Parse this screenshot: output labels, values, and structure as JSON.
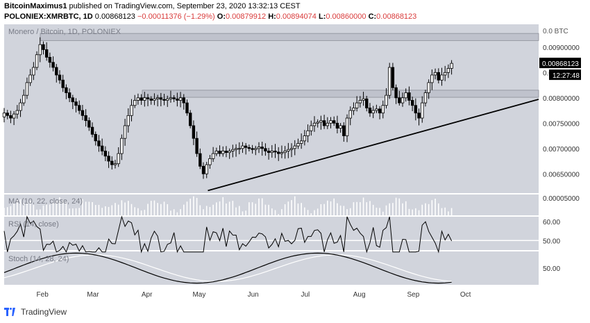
{
  "header": {
    "user": "BitcoinMaximus1",
    "published": "published on TradingView.com, September 23, 2020 13:32:13 CEST",
    "symbol": "POLONIEX:XMRBTC, 1D",
    "price": "0.00868123",
    "change": "−0.00011376 (−1.29%)",
    "o_label": "O:",
    "o": "0.00879912",
    "h_label": "H:",
    "h": "0.00894074",
    "l_label": "L:",
    "l": "0.00860000",
    "c_label": "C:",
    "c": "0.00868123"
  },
  "footer": {
    "brand": "TradingView"
  },
  "chart_data": {
    "type": "candlestick",
    "title": "Monero / Bitcoin, 1D, POLONIEX",
    "unit": "BTC",
    "top_axis_label": "0.0 BTC",
    "y_ticks": [
      "0.00900000",
      "0.00850000",
      "0.00800000",
      "0.00750000",
      "0.00700000",
      "0.00650000"
    ],
    "x_ticks": [
      "Feb",
      "Mar",
      "Apr",
      "May",
      "Jun",
      "Jul",
      "Aug",
      "Sep",
      "Oct"
    ],
    "last_price_label": "0.00868123",
    "countdown_label": "12:27:48",
    "resistance_zones": [
      {
        "from": 0.00913,
        "to": 0.00927
      },
      {
        "from": 0.00801,
        "to": 0.00815
      }
    ],
    "ascending_support_line": {
      "start": [
        "2020-05-06",
        0.00617
      ],
      "end": [
        "2020-10-31",
        0.00797
      ]
    },
    "closes": [
      0.0077,
      0.00765,
      0.0076,
      0.00768,
      0.00775,
      0.0079,
      0.00805,
      0.0083,
      0.00845,
      0.0086,
      0.00885,
      0.00905,
      0.00895,
      0.0088,
      0.0087,
      0.0086,
      0.00845,
      0.00835,
      0.0082,
      0.0081,
      0.008,
      0.00792,
      0.00785,
      0.00775,
      0.00765,
      0.00755,
      0.00742,
      0.00728,
      0.00715,
      0.00705,
      0.00695,
      0.00685,
      0.00675,
      0.00668,
      0.0067,
      0.0069,
      0.0072,
      0.00745,
      0.00765,
      0.00785,
      0.00795,
      0.008,
      0.00795,
      0.008,
      0.00798,
      0.00795,
      0.00798,
      0.008,
      0.00797,
      0.00795,
      0.00798,
      0.008,
      0.00798,
      0.00795,
      0.008,
      0.0079,
      0.0077,
      0.00745,
      0.0072,
      0.0069,
      0.00665,
      0.0065,
      0.00668,
      0.0068,
      0.0069,
      0.00695,
      0.0069,
      0.00695,
      0.00692,
      0.00695,
      0.00698,
      0.007,
      0.007,
      0.00705,
      0.00702,
      0.007,
      0.00698,
      0.007,
      0.00703,
      0.007,
      0.00695,
      0.00692,
      0.00695,
      0.00693,
      0.0069,
      0.00692,
      0.00695,
      0.00698,
      0.007,
      0.00705,
      0.0071,
      0.00715,
      0.00725,
      0.00735,
      0.00745,
      0.0075,
      0.00752,
      0.00755,
      0.00745,
      0.0075,
      0.00755,
      0.0075,
      0.0074,
      0.00745,
      0.00725,
      0.0076,
      0.00775,
      0.0078,
      0.0079,
      0.00795,
      0.00798,
      0.0078,
      0.0077,
      0.00775,
      0.00778,
      0.0077,
      0.00785,
      0.00805,
      0.0086,
      0.0082,
      0.008,
      0.0079,
      0.008,
      0.0081,
      0.00795,
      0.00785,
      0.0077,
      0.0076,
      0.0079,
      0.0081,
      0.0083,
      0.00845,
      0.0085,
      0.00835,
      0.00845,
      0.0085,
      0.00858,
      0.00868
    ],
    "indicators": [
      {
        "name": "MA",
        "label": "MA (10, 22, close, 24)",
        "right_label": "0.00005000"
      },
      {
        "name": "RSI",
        "label": "RSI (14, close)",
        "ticks": [
          "60.00",
          "50.00"
        ]
      },
      {
        "name": "Stoch",
        "label": "Stoch (14, 28, 24)",
        "ticks": [
          "50.00"
        ]
      }
    ]
  }
}
